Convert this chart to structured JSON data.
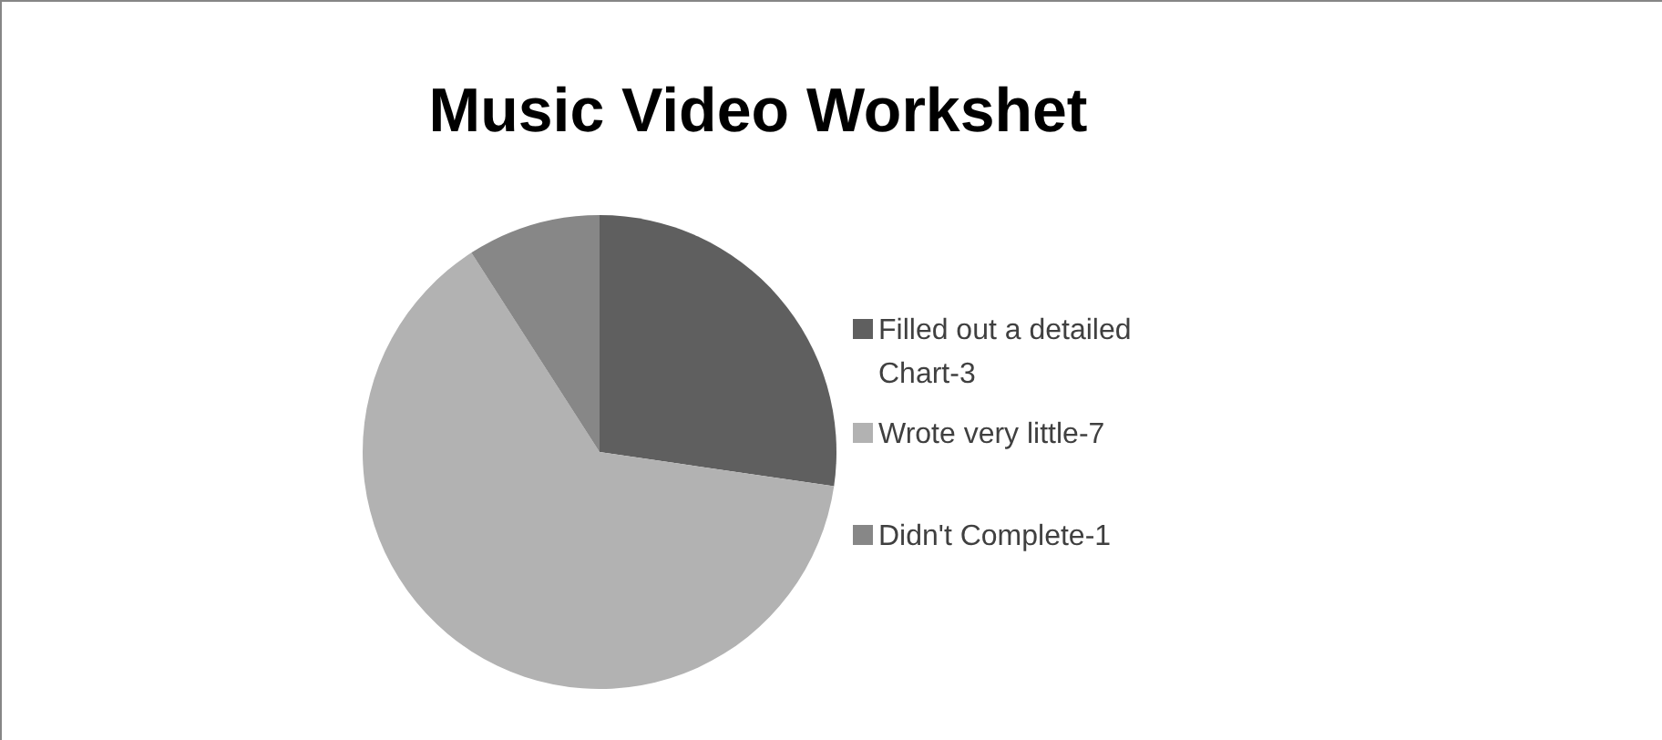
{
  "chart_data": {
    "type": "pie",
    "title": "Music Video Workshet",
    "categories": [
      "Filled out a detailed Chart-3",
      "Wrote very little-7",
      "Didn't Complete-1"
    ],
    "values": [
      27.3,
      63.6,
      9.1
    ],
    "colors": [
      "#5f5f5f",
      "#b2b2b2",
      "#878787"
    ],
    "legend": "right"
  }
}
